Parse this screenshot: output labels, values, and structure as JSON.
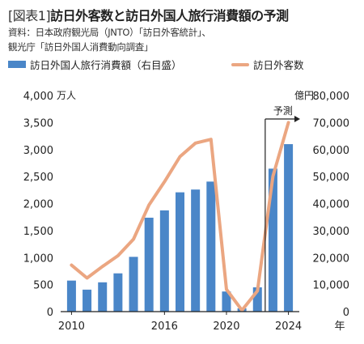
{
  "title_tag": "[図表1]",
  "title": "訪日外客数と訪日外国人旅行消費額の予測",
  "source_line1": "資料：日本政府観光局（JNTO）「訪日外客統計」、",
  "source_line2": "観光庁「訪日外国人消費動向調査」",
  "colors": {
    "bar": "#4a86c8",
    "line": "#eba681",
    "axis": "#222222"
  },
  "chart_data": {
    "type": "bar+line",
    "x": [
      2010,
      2011,
      2012,
      2013,
      2014,
      2015,
      2016,
      2017,
      2018,
      2019,
      2020,
      2021,
      2022,
      2023,
      2024
    ],
    "x_tick_labels": [
      "2010",
      "2016",
      "2020",
      "2024"
    ],
    "x_tick_values": [
      2010,
      2016,
      2020,
      2024
    ],
    "xlabel": "年",
    "series": [
      {
        "name": "訪日外国人旅行消費額（右目盛）",
        "type": "bar",
        "axis": "right",
        "values": [
          11490,
          8135,
          10846,
          14167,
          20278,
          34771,
          37476,
          44162,
          45189,
          48135,
          7446,
          1208,
          8987,
          52923,
          62000
        ]
      },
      {
        "name": "訪日外客数",
        "type": "line",
        "axis": "left",
        "values": [
          861,
          622,
          836,
          1036,
          1341,
          1974,
          2404,
          2869,
          3119,
          3188,
          412,
          25,
          383,
          2507,
          3500
        ]
      }
    ],
    "y_left": {
      "unit": "万人",
      "ylim": [
        0,
        4000
      ],
      "ticks": [
        "4,000",
        "3,500",
        "3,000",
        "2,500",
        "2,000",
        "1,500",
        "1,000",
        "500",
        "0"
      ]
    },
    "y_right": {
      "unit": "億円",
      "ylim": [
        0,
        80000
      ],
      "ticks": [
        "80,000",
        "70,000",
        "60,000",
        "50,000",
        "40,000",
        "30,000",
        "20,000",
        "10,000",
        "0"
      ]
    },
    "forecast_label": "予測",
    "forecast_start": 2022.5,
    "grid": false,
    "legend": "top"
  }
}
